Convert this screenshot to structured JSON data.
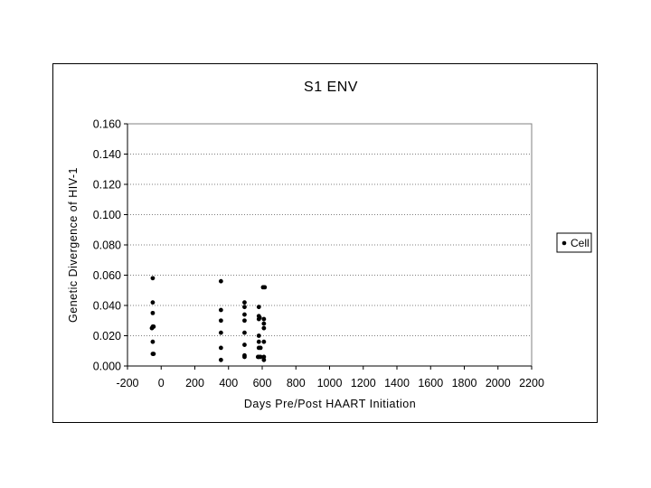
{
  "chart_data": {
    "type": "scatter",
    "title": "S1  ENV",
    "xlabel": "Days   Pre/Post   HAART   Initiation",
    "ylabel": "Genetic   Divergence   of   HIV-1",
    "xlim": [
      -200,
      2200
    ],
    "ylim": [
      0,
      0.16
    ],
    "x_ticks": [
      "-200",
      "0",
      "200",
      "400",
      "600",
      "800",
      "1000",
      "1200",
      "1400",
      "1600",
      "1800",
      "2000",
      "2200"
    ],
    "y_ticks": [
      "0.000",
      "0.020",
      "0.040",
      "0.060",
      "0.080",
      "0.100",
      "0.120",
      "0.140",
      "0.160"
    ],
    "grid": "horizontal",
    "legend_position": "right",
    "marker_color": "#000000",
    "series": [
      {
        "name": "Cell",
        "points": [
          {
            "x": -50,
            "y": 0.058
          },
          {
            "x": -50,
            "y": 0.042
          },
          {
            "x": -50,
            "y": 0.035
          },
          {
            "x": -50,
            "y": 0.026
          },
          {
            "x": -55,
            "y": 0.025
          },
          {
            "x": -45,
            "y": 0.026
          },
          {
            "x": -50,
            "y": 0.016
          },
          {
            "x": -50,
            "y": 0.008
          },
          {
            "x": -45,
            "y": 0.008
          },
          {
            "x": 355,
            "y": 0.056
          },
          {
            "x": 355,
            "y": 0.037
          },
          {
            "x": 355,
            "y": 0.03
          },
          {
            "x": 355,
            "y": 0.022
          },
          {
            "x": 355,
            "y": 0.012
          },
          {
            "x": 355,
            "y": 0.004
          },
          {
            "x": 495,
            "y": 0.042
          },
          {
            "x": 495,
            "y": 0.039
          },
          {
            "x": 495,
            "y": 0.034
          },
          {
            "x": 495,
            "y": 0.03
          },
          {
            "x": 495,
            "y": 0.022
          },
          {
            "x": 495,
            "y": 0.014
          },
          {
            "x": 495,
            "y": 0.007
          },
          {
            "x": 495,
            "y": 0.006
          },
          {
            "x": 580,
            "y": 0.039
          },
          {
            "x": 580,
            "y": 0.033
          },
          {
            "x": 585,
            "y": 0.032
          },
          {
            "x": 580,
            "y": 0.031
          },
          {
            "x": 580,
            "y": 0.02
          },
          {
            "x": 580,
            "y": 0.016
          },
          {
            "x": 580,
            "y": 0.012
          },
          {
            "x": 590,
            "y": 0.012
          },
          {
            "x": 580,
            "y": 0.006
          },
          {
            "x": 590,
            "y": 0.006
          },
          {
            "x": 575,
            "y": 0.006
          },
          {
            "x": 605,
            "y": 0.052
          },
          {
            "x": 615,
            "y": 0.052
          },
          {
            "x": 610,
            "y": 0.031
          },
          {
            "x": 610,
            "y": 0.028
          },
          {
            "x": 610,
            "y": 0.025
          },
          {
            "x": 610,
            "y": 0.016
          },
          {
            "x": 610,
            "y": 0.006
          },
          {
            "x": 610,
            "y": 0.004
          }
        ]
      }
    ]
  }
}
